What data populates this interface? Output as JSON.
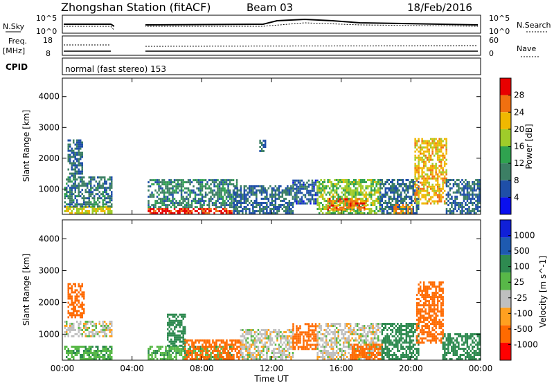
{
  "header": {
    "title": "Zhongshan Station (fitACF)",
    "beam": "Beam 03",
    "date": "18/Feb/2016"
  },
  "top_panels": {
    "nsky_label": "N.Sky",
    "nsearch_label": "N.Search",
    "nsky_ticks": [
      "10^5",
      "10^0"
    ],
    "nsearch_ticks": [
      "10^5",
      "10^0"
    ],
    "freq_label_1": "Freq.",
    "freq_label_2": "[MHz]",
    "freq_ticks": [
      "18",
      "8"
    ],
    "nave_label": "Nave",
    "nave_ticks": [
      "60",
      "0"
    ],
    "cpid_label": "CPID",
    "cpid_text": "normal (fast stereo) 153"
  },
  "colors": {
    "power": [
      "#0a10ee",
      "#1f4fa8",
      "#3c7f64",
      "#2fa24f",
      "#9fcc2a",
      "#f0b800",
      "#f07010",
      "#e80000"
    ],
    "velocity": [
      "#ff0000",
      "#ff6a00",
      "#ffa020",
      "#bfbfbf",
      "#58b848",
      "#2e8a50",
      "#1e5ab0",
      "#1020d8"
    ]
  },
  "chart_data": [
    {
      "type": "heatmap",
      "title": "Power",
      "ylabel": "Slant Range [km]",
      "xlabel": "",
      "colorbar_label": "Power [dB]",
      "colorbar_ticks": [
        "28",
        "24",
        "20",
        "16",
        "12",
        "8",
        "4"
      ],
      "colorbar_range": [
        0,
        32
      ],
      "xlim": [
        "00:00",
        "24:00"
      ],
      "ylim": [
        180,
        4600
      ],
      "x_ticks": [
        "00:00",
        "04:00",
        "08:00",
        "12:00",
        "16:00",
        "20:00",
        "00:00"
      ],
      "y_ticks": [
        "4000",
        "3000",
        "2000",
        "1000"
      ],
      "regions": [
        {
          "t0": 0.1,
          "t1": 2.8,
          "r0": 180,
          "r1": 400,
          "value": 20
        },
        {
          "t0": 0.1,
          "t1": 2.8,
          "r0": 400,
          "r1": 1400,
          "value": 9
        },
        {
          "t0": 0.3,
          "t1": 1.1,
          "r0": 1400,
          "r1": 2600,
          "value": 8
        },
        {
          "t0": 4.9,
          "t1": 9.7,
          "r0": 180,
          "r1": 380,
          "value": 29
        },
        {
          "t0": 4.9,
          "t1": 10.0,
          "r0": 380,
          "r1": 1300,
          "value": 10
        },
        {
          "t0": 9.8,
          "t1": 13.2,
          "r0": 180,
          "r1": 1100,
          "value": 8
        },
        {
          "t0": 13.2,
          "t1": 14.6,
          "r0": 500,
          "r1": 1300,
          "value": 7
        },
        {
          "t0": 14.6,
          "t1": 18.2,
          "r0": 180,
          "r1": 1300,
          "value": 17
        },
        {
          "t0": 15.2,
          "t1": 17.4,
          "r0": 300,
          "r1": 700,
          "value": 26
        },
        {
          "t0": 18.2,
          "t1": 20.4,
          "r0": 180,
          "r1": 1300,
          "value": 8
        },
        {
          "t0": 19.0,
          "t1": 20.0,
          "r0": 180,
          "r1": 500,
          "value": 24
        },
        {
          "t0": 20.2,
          "t1": 22.0,
          "r0": 500,
          "r1": 2600,
          "value": 22
        },
        {
          "t0": 22.0,
          "t1": 23.9,
          "r0": 180,
          "r1": 1300,
          "value": 8
        },
        {
          "t0": 11.3,
          "t1": 11.6,
          "r0": 2200,
          "r1": 2600,
          "value": 8
        }
      ]
    },
    {
      "type": "heatmap",
      "title": "Velocity",
      "ylabel": "Slant Range [km]",
      "xlabel": "Time UT",
      "colorbar_label": "Velocity [m s^-1]",
      "colorbar_ticks": [
        "1000",
        "500",
        "100",
        "25",
        "-25",
        "-100",
        "-500",
        "-1000"
      ],
      "colorbar_range": [
        -1000,
        1000
      ],
      "xlim": [
        "00:00",
        "24:00"
      ],
      "ylim": [
        180,
        4600
      ],
      "x_ticks": [
        "00:00",
        "04:00",
        "08:00",
        "12:00",
        "16:00",
        "20:00",
        "00:00"
      ],
      "y_ticks": [
        "4000",
        "3000",
        "2000",
        "1000"
      ],
      "regions": [
        {
          "t0": 0.1,
          "t1": 2.8,
          "r0": 180,
          "r1": 600,
          "value": 80
        },
        {
          "t0": 0.1,
          "t1": 2.8,
          "r0": 900,
          "r1": 1400,
          "value": 0
        },
        {
          "t0": 0.3,
          "t1": 1.2,
          "r0": 1500,
          "r1": 2600,
          "value": -200
        },
        {
          "t0": 4.9,
          "t1": 9.7,
          "r0": 180,
          "r1": 600,
          "value": 80
        },
        {
          "t0": 6.0,
          "t1": 7.0,
          "r0": 600,
          "r1": 1600,
          "value": 400
        },
        {
          "t0": 7.0,
          "t1": 10.2,
          "r0": 180,
          "r1": 800,
          "value": -200
        },
        {
          "t0": 10.2,
          "t1": 13.2,
          "r0": 180,
          "r1": 1100,
          "value": 0
        },
        {
          "t0": 13.2,
          "t1": 14.6,
          "r0": 500,
          "r1": 1300,
          "value": -200
        },
        {
          "t0": 14.6,
          "t1": 18.2,
          "r0": 180,
          "r1": 1300,
          "value": 0
        },
        {
          "t0": 16.5,
          "t1": 18.3,
          "r0": 180,
          "r1": 700,
          "value": -150
        },
        {
          "t0": 18.3,
          "t1": 20.4,
          "r0": 180,
          "r1": 1300,
          "value": 400
        },
        {
          "t0": 20.3,
          "t1": 21.8,
          "r0": 700,
          "r1": 2600,
          "value": -150
        },
        {
          "t0": 21.8,
          "t1": 23.9,
          "r0": 180,
          "r1": 1000,
          "value": 200
        }
      ]
    }
  ]
}
